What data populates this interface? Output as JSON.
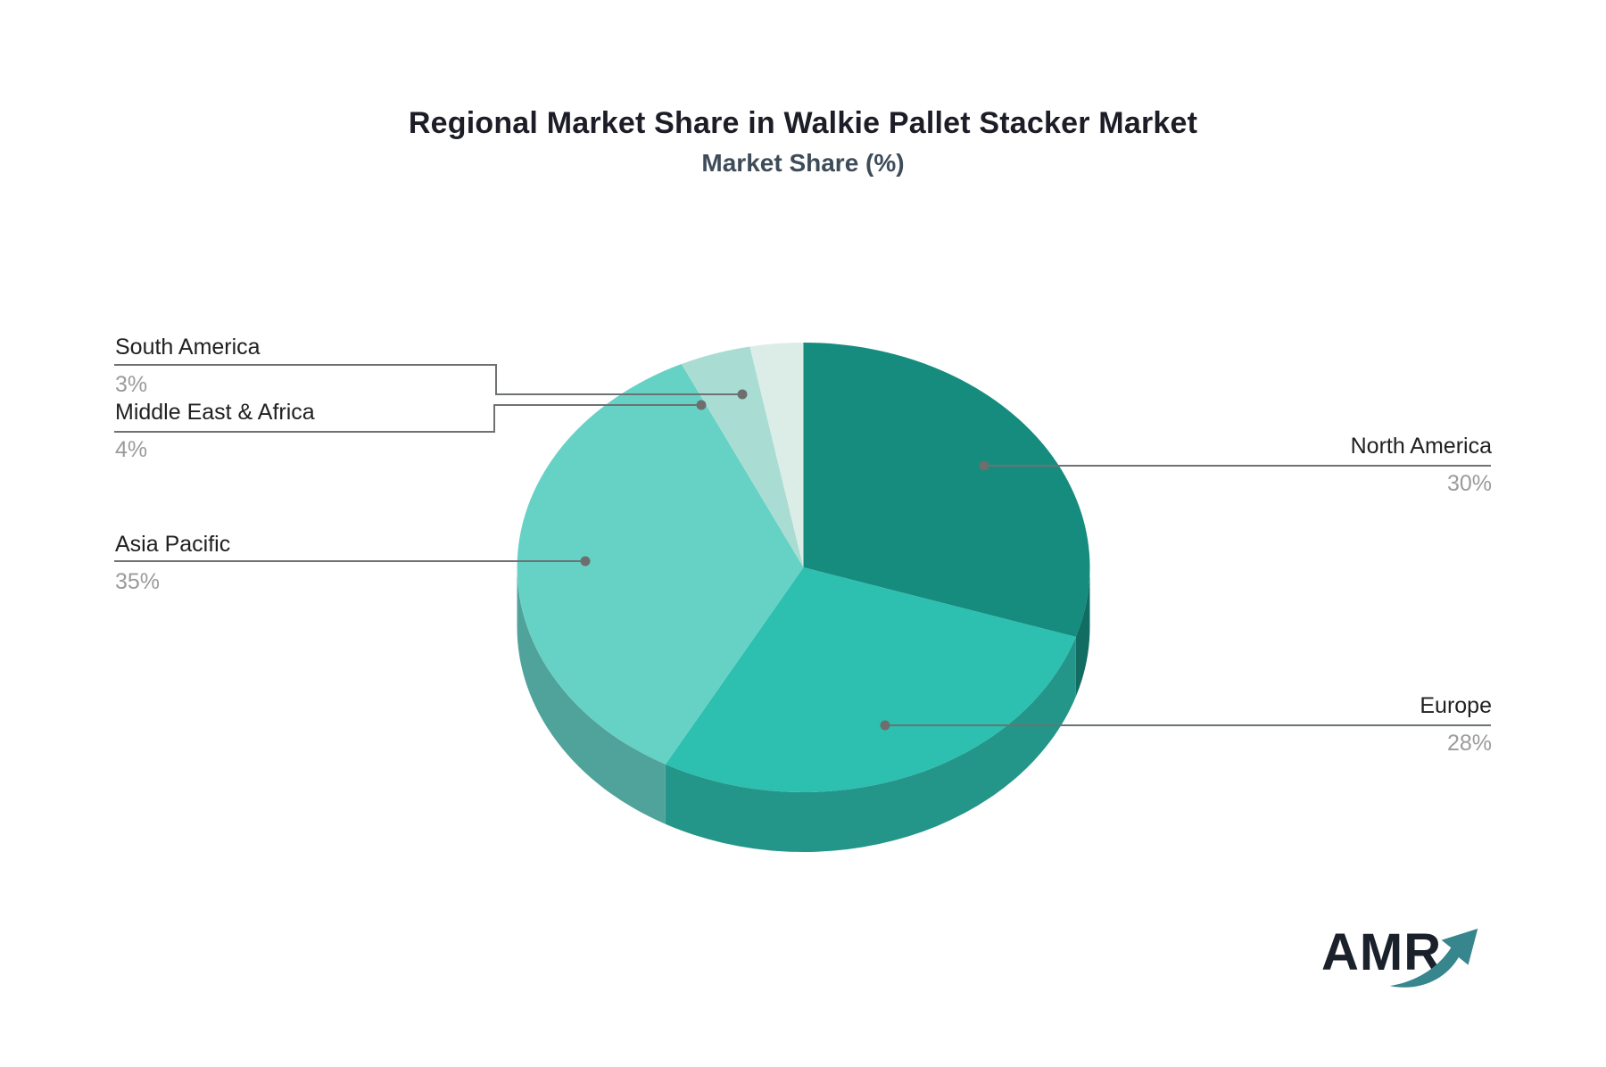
{
  "header": {
    "title": "Regional Market Share in Walkie Pallet Stacker Market",
    "subtitle": "Market Share (%)"
  },
  "logo": {
    "text": "AMR"
  },
  "chart_data": {
    "type": "pie",
    "title": "Regional Market Share in Walkie Pallet Stacker Market",
    "subtitle": "Market Share (%)",
    "labels": [
      "North America",
      "Europe",
      "Asia Pacific",
      "Middle East & Africa",
      "South America"
    ],
    "values": [
      30,
      28,
      35,
      4,
      3
    ],
    "slices": [
      {
        "label": "North America",
        "value": 30,
        "pct": "30%",
        "color": "#168C7E"
      },
      {
        "label": "Europe",
        "value": 28,
        "pct": "28%",
        "color": "#2DBFAF"
      },
      {
        "label": "Asia Pacific",
        "value": 35,
        "pct": "35%",
        "color": "#66D1C5"
      },
      {
        "label": "Middle East & Africa",
        "value": 4,
        "pct": "4%",
        "color": "#A9DDD3"
      },
      {
        "label": "South America",
        "value": 3,
        "pct": "3%",
        "color": "#DCEDE8"
      }
    ],
    "start_angle_deg": 0,
    "direction": "clockwise",
    "projection": "3d",
    "legend_position": "none",
    "style": {
      "connector_color": "#6E7272",
      "dot_color": "#6E6E6E",
      "label_color": "#212121",
      "pct_color": "#9B9B9B",
      "title_color": "#1D1D27",
      "subtitle_color": "#3E4C59",
      "logo_text_color": "#1A212B",
      "logo_arrow_color": "#37868D"
    }
  }
}
